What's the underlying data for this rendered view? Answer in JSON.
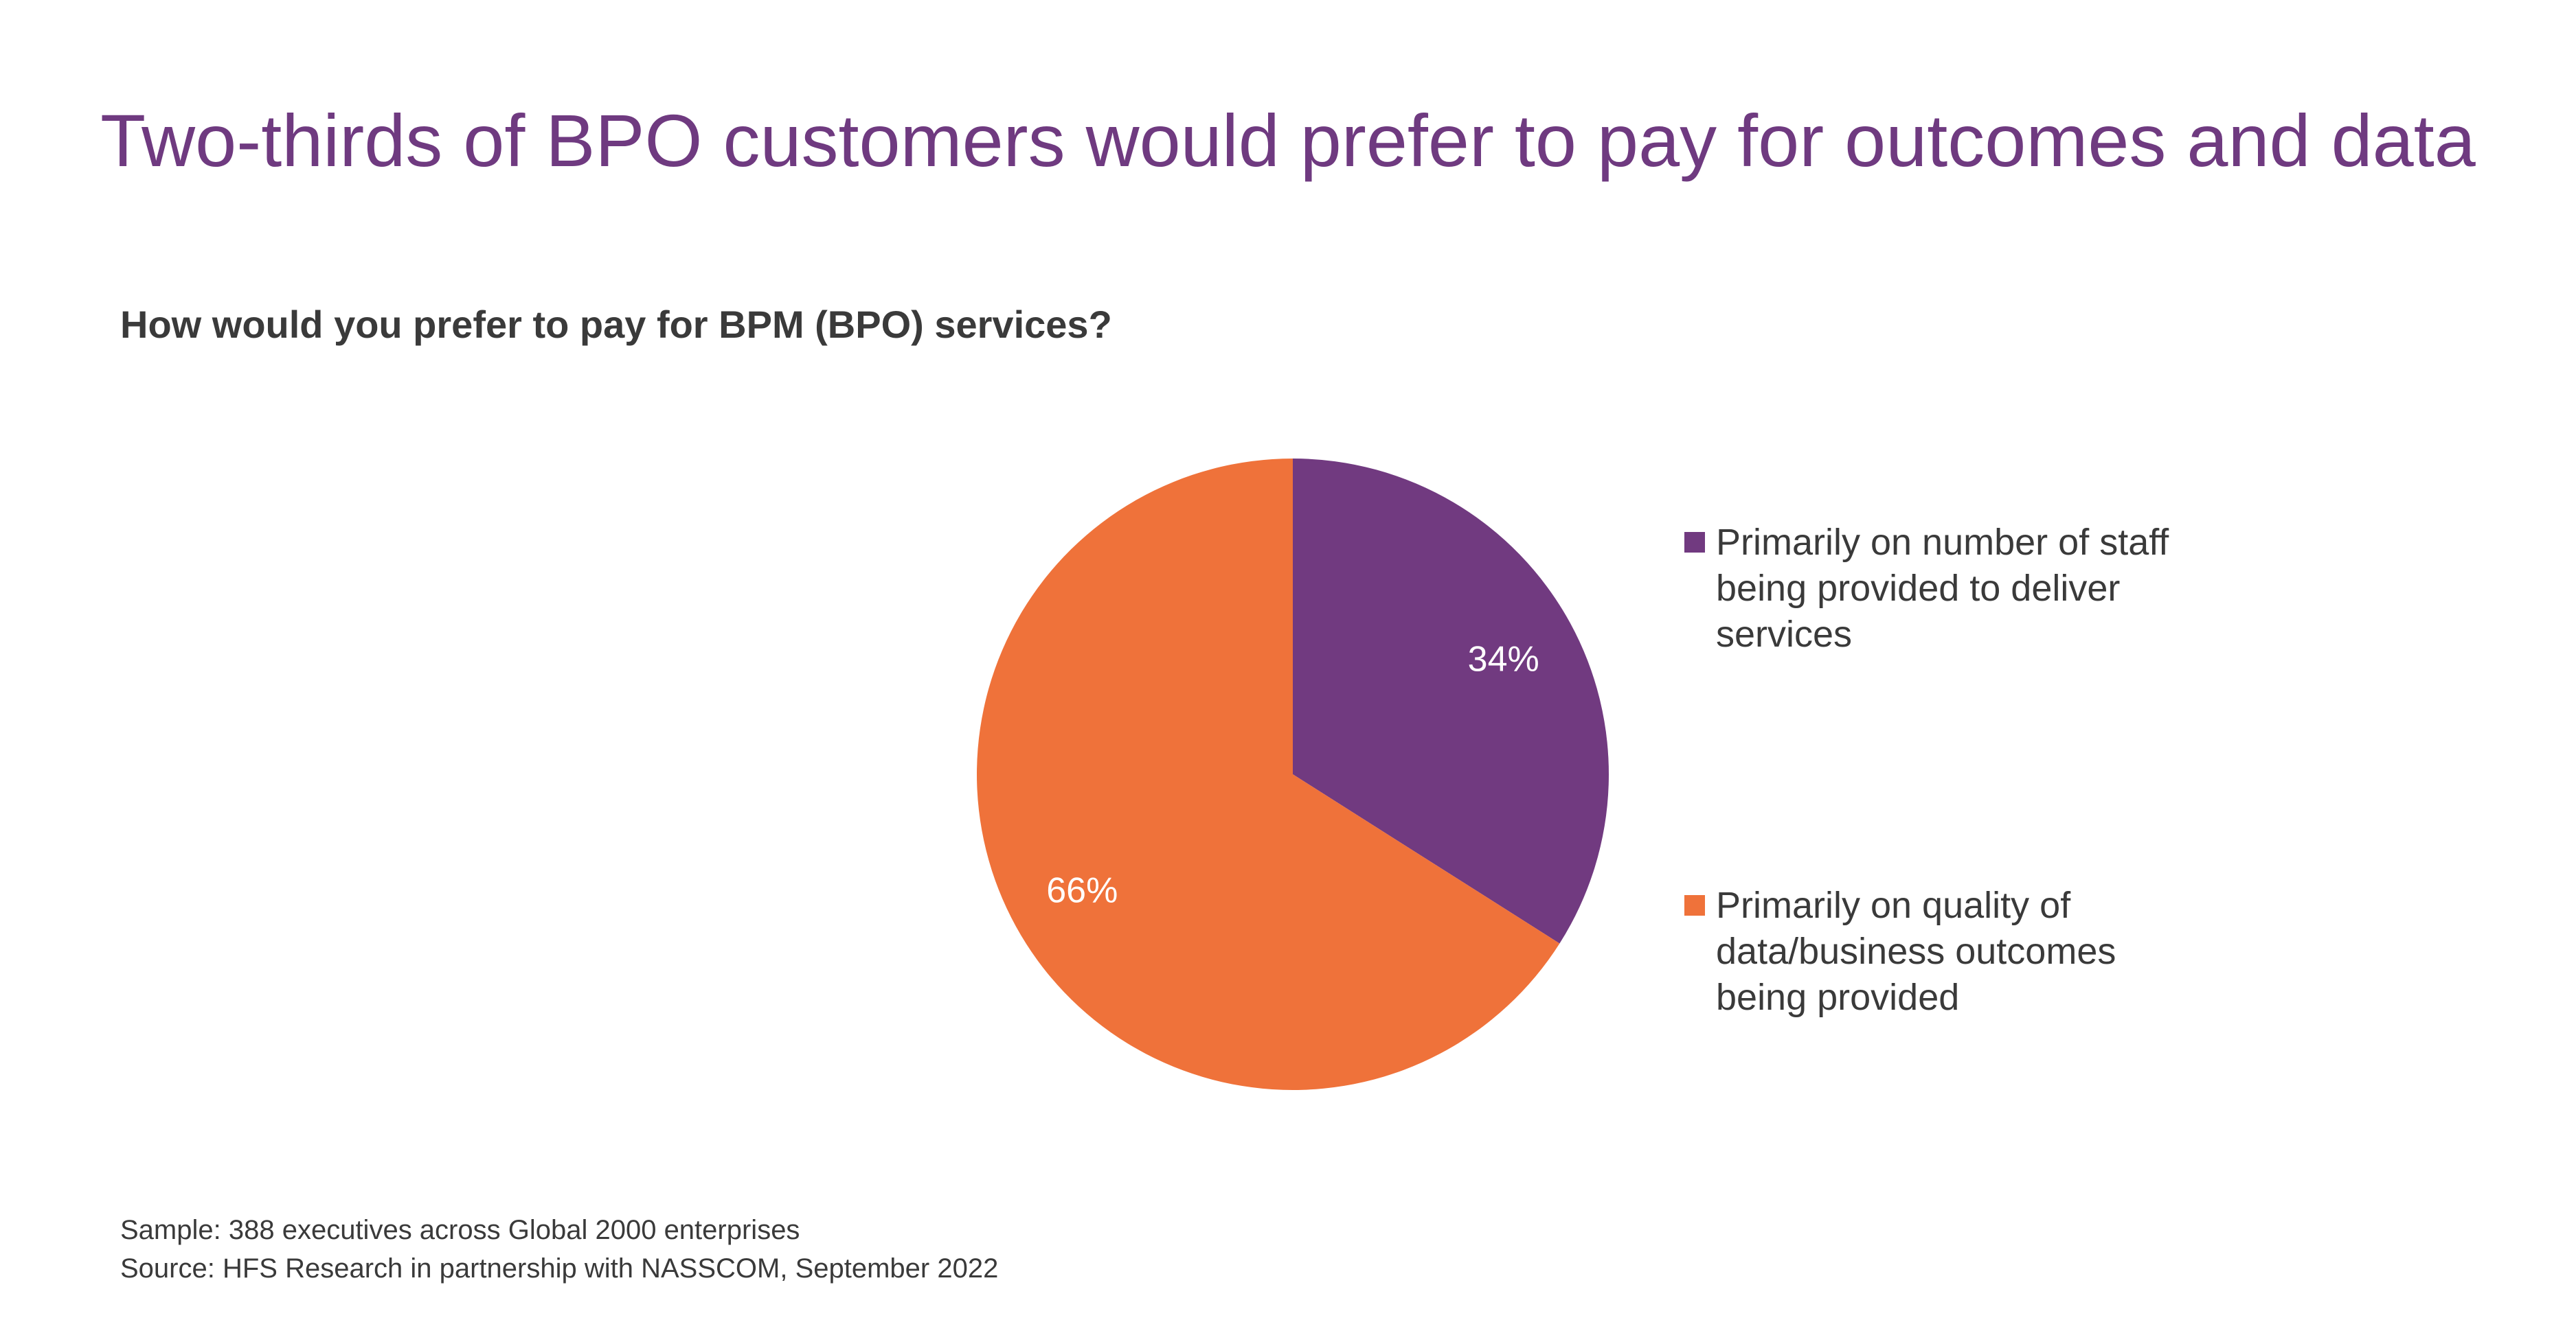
{
  "title": "Two-thirds of BPO customers would prefer to pay for outcomes and data",
  "question": "How would you prefer to pay for BPM (BPO) services?",
  "chart_data": {
    "type": "pie",
    "title": "How would you prefer to pay for BPM (BPO) services?",
    "slices": [
      {
        "name": "Primarily on number of staff being provided to deliver services",
        "value": 34,
        "label": "34%",
        "color": "#713a80"
      },
      {
        "name": "Primarily on quality of data/business outcomes being provided",
        "value": 66,
        "label": "66%",
        "color": "#ef723a"
      }
    ],
    "legend_position": "right"
  },
  "legend": [
    {
      "label": "Primarily on number of staff being provided to deliver services",
      "color": "#713a80"
    },
    {
      "label": "Primarily on quality of data/business outcomes being provided",
      "color": "#ef723a"
    }
  ],
  "footnotes": {
    "sample": "Sample: 388 executives across Global 2000 enterprises",
    "source": "Source: HFS Research in partnership with NASSCOM, September 2022"
  }
}
